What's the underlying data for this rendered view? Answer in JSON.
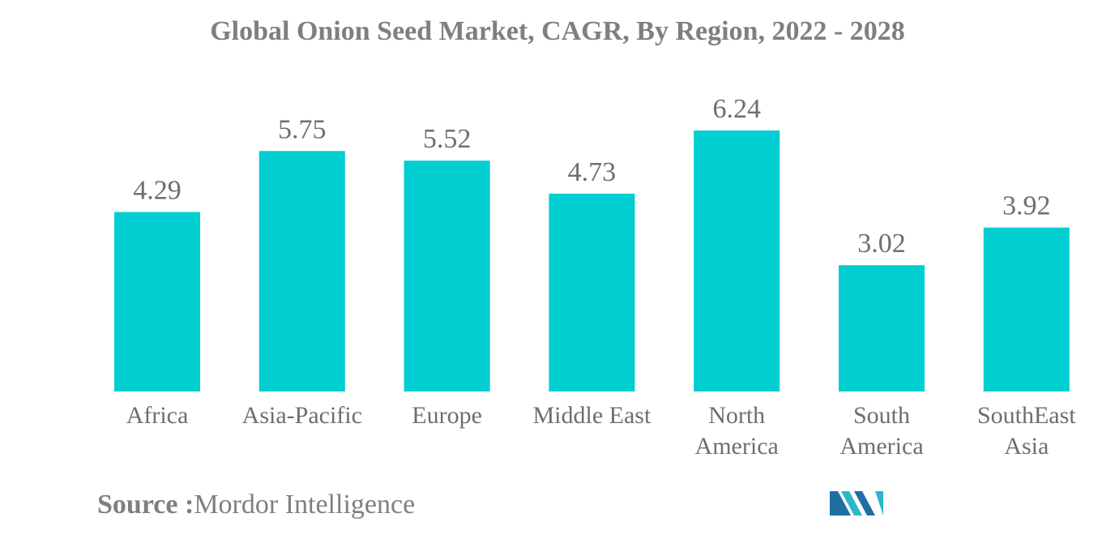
{
  "chart_data": {
    "type": "bar",
    "title": "Global Onion Seed Market, CAGR, By Region, 2022 - 2028",
    "categories": [
      "Africa",
      "Asia-Pacific",
      "Europe",
      "Middle East",
      "North America",
      "South America",
      "SouthEast Asia"
    ],
    "category_lines": [
      [
        "Africa"
      ],
      [
        "Asia-Pacific"
      ],
      [
        "Europe"
      ],
      [
        "Middle East"
      ],
      [
        "North",
        "America"
      ],
      [
        "South",
        "America"
      ],
      [
        "SouthEast",
        "Asia"
      ]
    ],
    "values": [
      4.29,
      5.75,
      5.52,
      4.73,
      6.24,
      3.02,
      3.92
    ],
    "value_labels": [
      "4.29",
      "5.75",
      "5.52",
      "4.73",
      "6.24",
      "3.02",
      "3.92"
    ],
    "xlabel": "",
    "ylabel": "",
    "ylim": [
      0,
      6.24
    ],
    "grid": false,
    "legend": "none",
    "data_labels": true,
    "bar_color": "#00ced1"
  },
  "source": {
    "label": "Source :",
    "text": "Mordor Intelligence"
  },
  "logo": {
    "icon": "mordor-intelligence-logo-icon",
    "colors": [
      "#1f6fa3",
      "#2ab8c8"
    ]
  }
}
